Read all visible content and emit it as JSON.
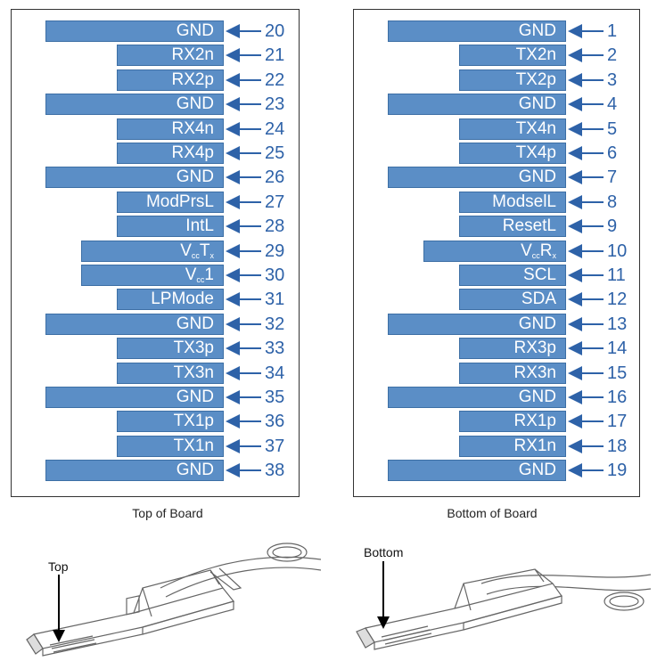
{
  "top_pins": [
    {
      "label": "GND",
      "sub": "",
      "tail": "",
      "number": "20",
      "size": "xl"
    },
    {
      "label": "RX2n",
      "sub": "",
      "tail": "",
      "number": "21",
      "size": "m"
    },
    {
      "label": "RX2p",
      "sub": "",
      "tail": "",
      "number": "22",
      "size": "m"
    },
    {
      "label": "GND",
      "sub": "",
      "tail": "",
      "number": "23",
      "size": "xl"
    },
    {
      "label": "RX4n",
      "sub": "",
      "tail": "",
      "number": "24",
      "size": "m"
    },
    {
      "label": "RX4p",
      "sub": "",
      "tail": "",
      "number": "25",
      "size": "m"
    },
    {
      "label": "GND",
      "sub": "",
      "tail": "",
      "number": "26",
      "size": "xl"
    },
    {
      "label": "ModPrsL",
      "sub": "",
      "tail": "",
      "number": "27",
      "size": "m"
    },
    {
      "label": "IntL",
      "sub": "",
      "tail": "",
      "number": "28",
      "size": "m"
    },
    {
      "label": "V",
      "sub": "cc",
      "tail": "T",
      "tailsub": "x",
      "number": "29",
      "size": "l"
    },
    {
      "label": "V",
      "sub": "cc",
      "tail": "1",
      "tailsub": "",
      "number": "30",
      "size": "l"
    },
    {
      "label": "LPMode",
      "sub": "",
      "tail": "",
      "number": "31",
      "size": "m"
    },
    {
      "label": "GND",
      "sub": "",
      "tail": "",
      "number": "32",
      "size": "xl"
    },
    {
      "label": "TX3p",
      "sub": "",
      "tail": "",
      "number": "33",
      "size": "m"
    },
    {
      "label": "TX3n",
      "sub": "",
      "tail": "",
      "number": "34",
      "size": "m"
    },
    {
      "label": "GND",
      "sub": "",
      "tail": "",
      "number": "35",
      "size": "xl"
    },
    {
      "label": "TX1p",
      "sub": "",
      "tail": "",
      "number": "36",
      "size": "m"
    },
    {
      "label": "TX1n",
      "sub": "",
      "tail": "",
      "number": "37",
      "size": "m"
    },
    {
      "label": "GND",
      "sub": "",
      "tail": "",
      "number": "38",
      "size": "xl"
    }
  ],
  "bottom_pins": [
    {
      "label": "GND",
      "sub": "",
      "tail": "",
      "number": "1",
      "size": "xl"
    },
    {
      "label": "TX2n",
      "sub": "",
      "tail": "",
      "number": "2",
      "size": "m"
    },
    {
      "label": "TX2p",
      "sub": "",
      "tail": "",
      "number": "3",
      "size": "m"
    },
    {
      "label": "GND",
      "sub": "",
      "tail": "",
      "number": "4",
      "size": "xl"
    },
    {
      "label": "TX4n",
      "sub": "",
      "tail": "",
      "number": "5",
      "size": "m"
    },
    {
      "label": "TX4p",
      "sub": "",
      "tail": "",
      "number": "6",
      "size": "m"
    },
    {
      "label": "GND",
      "sub": "",
      "tail": "",
      "number": "7",
      "size": "xl"
    },
    {
      "label": "ModselL",
      "sub": "",
      "tail": "",
      "number": "8",
      "size": "m"
    },
    {
      "label": "ResetL",
      "sub": "",
      "tail": "",
      "number": "9",
      "size": "m"
    },
    {
      "label": "V",
      "sub": "cc",
      "tail": "R",
      "tailsub": "x",
      "number": "10",
      "size": "l"
    },
    {
      "label": "SCL",
      "sub": "",
      "tail": "",
      "number": "11",
      "size": "m"
    },
    {
      "label": "SDA",
      "sub": "",
      "tail": "",
      "number": "12",
      "size": "m"
    },
    {
      "label": "GND",
      "sub": "",
      "tail": "",
      "number": "13",
      "size": "xl"
    },
    {
      "label": "RX3p",
      "sub": "",
      "tail": "",
      "number": "14",
      "size": "m"
    },
    {
      "label": "RX3n",
      "sub": "",
      "tail": "",
      "number": "15",
      "size": "m"
    },
    {
      "label": "GND",
      "sub": "",
      "tail": "",
      "number": "16",
      "size": "xl"
    },
    {
      "label": "RX1p",
      "sub": "",
      "tail": "",
      "number": "17",
      "size": "m"
    },
    {
      "label": "RX1n",
      "sub": "",
      "tail": "",
      "number": "18",
      "size": "m"
    },
    {
      "label": "GND",
      "sub": "",
      "tail": "",
      "number": "19",
      "size": "xl"
    }
  ],
  "captions": {
    "top": "Top of Board",
    "bottom": "Bottom of Board"
  },
  "callouts": {
    "top": "Top",
    "bottom": "Bottom"
  },
  "colors": {
    "bar_fill": "#5b8ec6",
    "accent": "#2e62a8"
  }
}
